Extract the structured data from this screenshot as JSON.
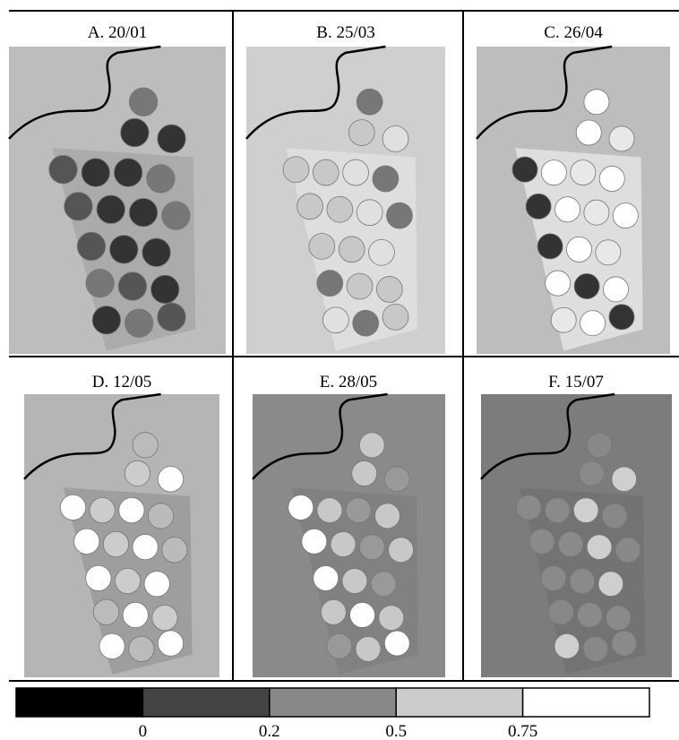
{
  "panels": [
    {
      "label": "A. 20/01"
    },
    {
      "label": "B. 25/03"
    },
    {
      "label": "C. 26/04"
    },
    {
      "label": "D. 12/05"
    },
    {
      "label": "E. 28/05"
    },
    {
      "label": "F. 15/07"
    }
  ],
  "legend": {
    "ticks": [
      0,
      0.2,
      0.5,
      0.75
    ]
  }
}
